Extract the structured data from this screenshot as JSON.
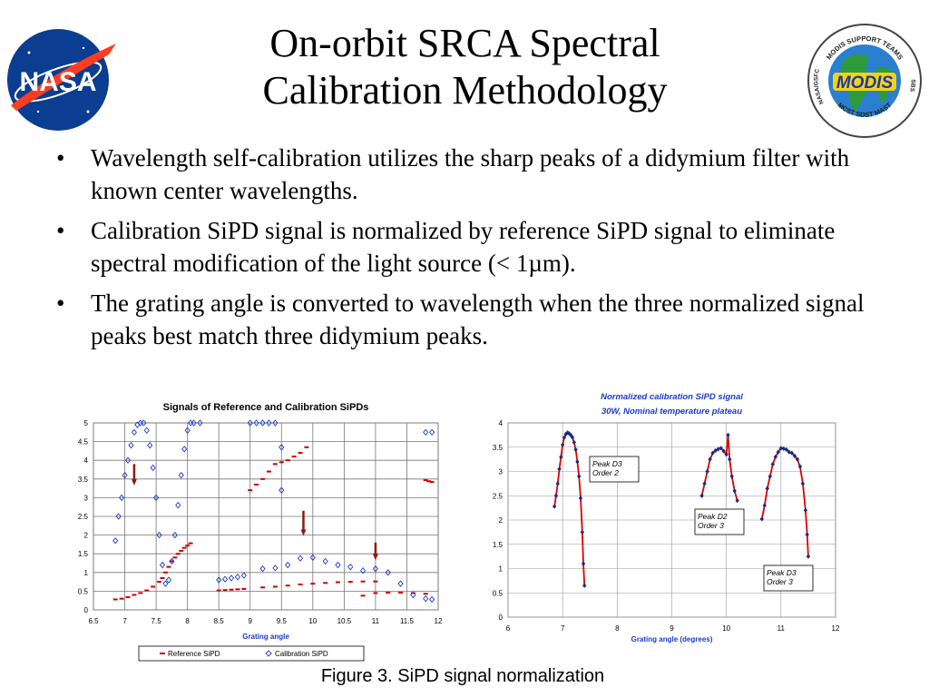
{
  "slide": {
    "title_line1": "On-orbit SRCA Spectral",
    "title_line2": "Calibration Methodology",
    "bullets": [
      "Wavelength self-calibration utilizes the sharp peaks of a didymium filter with known center wavelengths.",
      "Calibration SiPD signal is normalized by reference SiPD signal to eliminate spectral modification of the light source (< 1µm).",
      "The grating angle is converted to wavelength when the three normalized signal peaks best match three didymium peaks."
    ],
    "caption": "Figure 3. SiPD signal normalization",
    "logo_left": {
      "text": "NASA"
    },
    "logo_right": {
      "center": "MODIS",
      "ring_top": "MODIS SUPPORT TEAMS",
      "ring_left": "NASA/GSFC",
      "ring_right": "SBS",
      "ring_bottom": "MCST SDST MAST"
    }
  },
  "chart_data": [
    {
      "type": "scatter",
      "title": "Signals of Reference and Calibration SiPDs",
      "xlabel": "Grating angle",
      "ylabel": "",
      "xlim": [
        6.5,
        12
      ],
      "ylim": [
        0,
        5
      ],
      "xticks": [
        "6.5",
        "7",
        "7.5",
        "8",
        "8.5",
        "9",
        "9.5",
        "10",
        "10.5",
        "11",
        "11.5",
        "12"
      ],
      "yticks": [
        "0",
        "0.5",
        "1",
        "1.5",
        "2",
        "2.5",
        "3",
        "3.5",
        "4",
        "4.5",
        "5"
      ],
      "legend_position": "bottom",
      "annotations": [
        "down-arrow at 7.15, 3.9",
        "down-arrow at 9.85, 2.65",
        "down-arrow at 11.0, 1.8"
      ],
      "series": [
        {
          "name": "Reference SiPD",
          "marker": "dash",
          "color": "#cc0000",
          "points": [
            [
              6.85,
              0.28
            ],
            [
              6.95,
              0.3
            ],
            [
              7.05,
              0.34
            ],
            [
              7.15,
              0.4
            ],
            [
              7.25,
              0.45
            ],
            [
              7.35,
              0.52
            ],
            [
              7.45,
              0.62
            ],
            [
              7.55,
              0.75
            ],
            [
              7.6,
              0.85
            ],
            [
              7.65,
              1.0
            ],
            [
              7.7,
              1.15
            ],
            [
              7.75,
              1.3
            ],
            [
              7.8,
              1.4
            ],
            [
              7.85,
              1.5
            ],
            [
              7.9,
              1.58
            ],
            [
              7.95,
              1.66
            ],
            [
              8.0,
              1.72
            ],
            [
              8.05,
              1.78
            ],
            [
              8.5,
              0.52
            ],
            [
              8.6,
              0.53
            ],
            [
              8.7,
              0.54
            ],
            [
              8.8,
              0.55
            ],
            [
              8.9,
              0.56
            ],
            [
              9.0,
              3.2
            ],
            [
              9.1,
              3.35
            ],
            [
              9.2,
              3.5
            ],
            [
              9.3,
              3.7
            ],
            [
              9.4,
              3.9
            ],
            [
              9.5,
              3.95
            ],
            [
              9.6,
              4.0
            ],
            [
              9.7,
              4.1
            ],
            [
              9.8,
              4.2
            ],
            [
              9.9,
              4.35
            ],
            [
              9.2,
              0.6
            ],
            [
              9.4,
              0.62
            ],
            [
              9.6,
              0.65
            ],
            [
              9.8,
              0.68
            ],
            [
              10.0,
              0.7
            ],
            [
              10.2,
              0.72
            ],
            [
              10.4,
              0.74
            ],
            [
              10.6,
              0.75
            ],
            [
              10.8,
              0.76
            ],
            [
              11.0,
              0.76
            ],
            [
              10.8,
              0.38
            ],
            [
              11.0,
              0.45
            ],
            [
              11.2,
              0.46
            ],
            [
              11.4,
              0.46
            ],
            [
              11.6,
              0.45
            ],
            [
              11.8,
              0.43
            ],
            [
              11.8,
              3.47
            ],
            [
              11.85,
              3.44
            ],
            [
              11.9,
              3.42
            ]
          ]
        },
        {
          "name": "Calibration SiPD",
          "marker": "diamond",
          "color": "#1a3acc",
          "points": [
            [
              6.85,
              1.85
            ],
            [
              6.9,
              2.5
            ],
            [
              6.95,
              3.0
            ],
            [
              7.0,
              3.6
            ],
            [
              7.05,
              4.0
            ],
            [
              7.1,
              4.4
            ],
            [
              7.15,
              4.75
            ],
            [
              7.2,
              4.95
            ],
            [
              7.25,
              5.0
            ],
            [
              7.3,
              5.0
            ],
            [
              7.35,
              4.8
            ],
            [
              7.4,
              4.4
            ],
            [
              7.45,
              3.8
            ],
            [
              7.5,
              3.0
            ],
            [
              7.55,
              2.0
            ],
            [
              7.6,
              1.2
            ],
            [
              7.65,
              0.7
            ],
            [
              7.7,
              0.8
            ],
            [
              7.75,
              1.3
            ],
            [
              7.8,
              2.0
            ],
            [
              7.85,
              2.8
            ],
            [
              7.9,
              3.6
            ],
            [
              7.95,
              4.3
            ],
            [
              8.0,
              4.8
            ],
            [
              8.05,
              5.0
            ],
            [
              8.1,
              5.0
            ],
            [
              8.2,
              5.0
            ],
            [
              8.5,
              0.8
            ],
            [
              8.6,
              0.82
            ],
            [
              8.7,
              0.85
            ],
            [
              8.8,
              0.88
            ],
            [
              8.9,
              0.92
            ],
            [
              9.0,
              5.0
            ],
            [
              9.1,
              5.0
            ],
            [
              9.2,
              5.0
            ],
            [
              9.3,
              5.0
            ],
            [
              9.4,
              5.0
            ],
            [
              9.5,
              4.35
            ],
            [
              9.5,
              3.2
            ],
            [
              9.2,
              1.1
            ],
            [
              9.4,
              1.12
            ],
            [
              9.6,
              1.2
            ],
            [
              9.8,
              1.38
            ],
            [
              10.0,
              1.4
            ],
            [
              10.2,
              1.3
            ],
            [
              10.4,
              1.2
            ],
            [
              10.6,
              1.15
            ],
            [
              10.8,
              1.05
            ],
            [
              11.0,
              1.1
            ],
            [
              11.2,
              1.0
            ],
            [
              11.4,
              0.7
            ],
            [
              11.6,
              0.4
            ],
            [
              11.8,
              0.3
            ],
            [
              11.9,
              0.28
            ],
            [
              11.8,
              4.75
            ],
            [
              11.9,
              4.75
            ]
          ]
        }
      ]
    },
    {
      "type": "scatter",
      "title": "Normalized calibration SiPD signal",
      "subtitle": "30W, Nominal temperature plateau",
      "xlabel": "Grating angle (degrees)",
      "ylabel": "",
      "xlim": [
        6,
        12
      ],
      "ylim": [
        0,
        4
      ],
      "xticks": [
        "6",
        "7",
        "8",
        "9",
        "10",
        "11",
        "12"
      ],
      "yticks": [
        "0",
        "0.5",
        "1",
        "1.5",
        "2",
        "2.5",
        "3",
        "3.5",
        "4"
      ],
      "annotations": [
        "Peak D3\nOrder 2",
        "Peak D2\nOrder 3",
        "Peak D3\nOrder 3"
      ],
      "series": [
        {
          "name": "Peak D3 Order 2",
          "points": [
            [
              6.85,
              2.28
            ],
            [
              6.88,
              2.5
            ],
            [
              6.91,
              2.75
            ],
            [
              6.94,
              3.05
            ],
            [
              6.97,
              3.3
            ],
            [
              7.0,
              3.55
            ],
            [
              7.03,
              3.7
            ],
            [
              7.06,
              3.77
            ],
            [
              7.09,
              3.8
            ],
            [
              7.12,
              3.78
            ],
            [
              7.15,
              3.75
            ],
            [
              7.18,
              3.7
            ],
            [
              7.21,
              3.6
            ],
            [
              7.24,
              3.45
            ],
            [
              7.27,
              3.2
            ],
            [
              7.3,
              2.9
            ],
            [
              7.33,
              2.45
            ],
            [
              7.36,
              1.75
            ],
            [
              7.38,
              1.1
            ],
            [
              7.4,
              0.65
            ]
          ]
        },
        {
          "name": "Peak D2 Order 3",
          "points": [
            [
              9.55,
              2.5
            ],
            [
              9.6,
              2.75
            ],
            [
              9.65,
              3.0
            ],
            [
              9.7,
              3.25
            ],
            [
              9.75,
              3.38
            ],
            [
              9.8,
              3.43
            ],
            [
              9.85,
              3.46
            ],
            [
              9.9,
              3.48
            ],
            [
              9.95,
              3.42
            ],
            [
              10.0,
              3.35
            ],
            [
              10.03,
              3.75
            ],
            [
              10.06,
              3.25
            ],
            [
              10.1,
              2.9
            ],
            [
              10.15,
              2.6
            ],
            [
              10.2,
              2.4
            ]
          ]
        },
        {
          "name": "Peak D3 Order 3",
          "points": [
            [
              10.65,
              2.02
            ],
            [
              10.7,
              2.3
            ],
            [
              10.75,
              2.65
            ],
            [
              10.8,
              2.9
            ],
            [
              10.85,
              3.15
            ],
            [
              10.9,
              3.3
            ],
            [
              10.95,
              3.4
            ],
            [
              11.0,
              3.48
            ],
            [
              11.05,
              3.47
            ],
            [
              11.1,
              3.45
            ],
            [
              11.15,
              3.4
            ],
            [
              11.2,
              3.38
            ],
            [
              11.25,
              3.32
            ],
            [
              11.3,
              3.25
            ],
            [
              11.35,
              3.1
            ],
            [
              11.4,
              2.75
            ],
            [
              11.45,
              2.2
            ],
            [
              11.48,
              1.7
            ],
            [
              11.5,
              1.25
            ]
          ]
        }
      ],
      "fit_color": "#dd0000",
      "marker_color": "#1a2a80"
    }
  ]
}
